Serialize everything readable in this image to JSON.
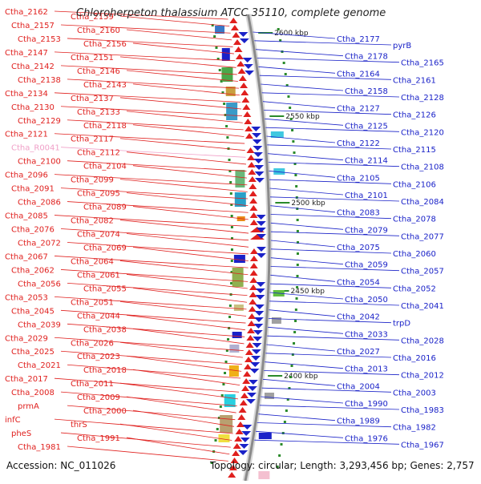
{
  "title": "Chloroherpeton thalassium ATCC 35110, complete genome",
  "accession": "Accession: NC_011026",
  "topology": "Topology: circular; Length: 3,293,456 bp; Genes: 2,757",
  "colors": {
    "left": "#e0201e",
    "right": "#1a22c8",
    "rna": "#f0a0c8",
    "backbone": "#8a8a8a",
    "tick": "#2a8a2a"
  },
  "kbp_ticks": [
    "2600 kbp",
    "2550 kbp",
    "2500 kbp",
    "2450 kbp",
    "2400 kbp"
  ],
  "left_labels": [
    "Ctha_2162",
    "Ctha_2159",
    "Ctha_2157",
    "Ctha_2160",
    "Ctha_2153",
    "Ctha_2156",
    "Ctha_2147",
    "Ctha_2151",
    "Ctha_2142",
    "Ctha_2146",
    "Ctha_2138",
    "Ctha_2143",
    "Ctha_2134",
    "Ctha_2137",
    "Ctha_2130",
    "Ctha_2133",
    "Ctha_2129",
    "Ctha_2118",
    "Ctha_2121",
    "Ctha_2117",
    "Ctha_R0041",
    "Ctha_2112",
    "Ctha_2100",
    "Ctha_2104",
    "Ctha_2096",
    "Ctha_2099",
    "Ctha_2091",
    "Ctha_2095",
    "Ctha_2086",
    "Ctha_2089",
    "Ctha_2085",
    "Ctha_2082",
    "Ctha_2076",
    "Ctha_2074",
    "Ctha_2072",
    "Ctha_2069",
    "Ctha_2067",
    "Ctha_2064",
    "Ctha_2062",
    "Ctha_2061",
    "Ctha_2056",
    "Ctha_2055",
    "Ctha_2053",
    "Ctha_2051",
    "Ctha_2045",
    "Ctha_2044",
    "Ctha_2039",
    "Ctha_2038",
    "Ctha_2029",
    "Ctha_2026",
    "Ctha_2025",
    "Ctha_2023",
    "Ctha_2021",
    "Ctha_2018",
    "Ctha_2017",
    "Ctha_2011",
    "Ctha_2008",
    "Ctha_2009",
    "prmA",
    "Ctha_2000",
    "infC",
    "thrS",
    "pheS",
    "Ctha_1991",
    "Ctha_1981"
  ],
  "right_labels": [
    "Ctha_2177",
    "pyrB",
    "Ctha_2178",
    "Ctha_2165",
    "Ctha_2164",
    "Ctha_2161",
    "Ctha_2158",
    "Ctha_2128",
    "Ctha_2127",
    "Ctha_2126",
    "Ctha_2125",
    "Ctha_2120",
    "Ctha_2122",
    "Ctha_2115",
    "Ctha_2114",
    "Ctha_2108",
    "Ctha_2105",
    "Ctha_2106",
    "Ctha_2101",
    "Ctha_2084",
    "Ctha_2083",
    "Ctha_2078",
    "Ctha_2079",
    "Ctha_2077",
    "Ctha_2075",
    "Ctha_2060",
    "Ctha_2059",
    "Ctha_2057",
    "Ctha_2054",
    "Ctha_2052",
    "Ctha_2050",
    "Ctha_2041",
    "Ctha_2042",
    "trpD",
    "Ctha_2033",
    "Ctha_2028",
    "Ctha_2027",
    "Ctha_2016",
    "Ctha_2013",
    "Ctha_2012",
    "Ctha_2004",
    "Ctha_2003",
    "Ctha_1990",
    "Ctha_1983",
    "Ctha_1989",
    "Ctha_1982",
    "Ctha_1976",
    "Ctha_1967"
  ]
}
